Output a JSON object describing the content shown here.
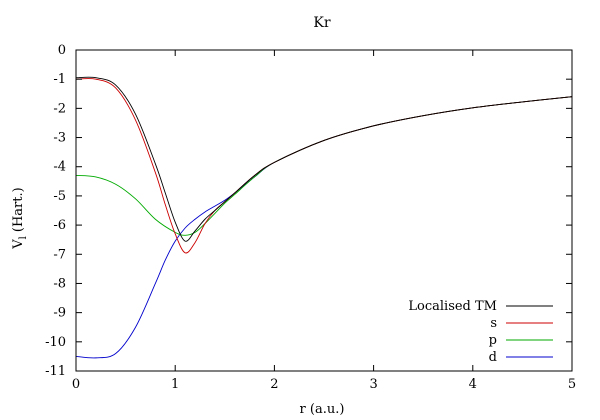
{
  "chart_data": {
    "type": "line",
    "title": "Kr",
    "xlabel": "r (a.u.)",
    "ylabel_main": "V",
    "ylabel_sub": "l",
    "ylabel_unit": "(Hart.)",
    "xlim": [
      0,
      5
    ],
    "ylim": [
      -11,
      0
    ],
    "xticks": [
      0,
      1,
      2,
      3,
      4,
      5
    ],
    "yticks": [
      0,
      -1,
      -2,
      -3,
      -4,
      -5,
      -6,
      -7,
      -8,
      -9,
      -10,
      -11
    ],
    "grid": false,
    "legend_position": "bottom-right",
    "series": [
      {
        "name": "Localised TM",
        "color": "#000000",
        "points": [
          [
            0,
            -0.95
          ],
          [
            0.2,
            -0.95
          ],
          [
            0.4,
            -1.2
          ],
          [
            0.6,
            -2.2
          ],
          [
            0.8,
            -3.9
          ],
          [
            0.9,
            -4.9
          ],
          [
            1.0,
            -5.9
          ],
          [
            1.1,
            -6.55
          ],
          [
            1.2,
            -6.2
          ],
          [
            1.3,
            -5.8
          ],
          [
            1.4,
            -5.5
          ],
          [
            1.5,
            -5.2
          ],
          [
            1.6,
            -4.9
          ],
          [
            1.8,
            -4.3
          ],
          [
            2.0,
            -3.85
          ],
          [
            2.5,
            -3.1
          ],
          [
            3.0,
            -2.6
          ],
          [
            3.5,
            -2.25
          ],
          [
            4.0,
            -1.98
          ],
          [
            4.5,
            -1.78
          ],
          [
            5.0,
            -1.6
          ]
        ]
      },
      {
        "name": "s",
        "color": "#cc0000",
        "points": [
          [
            0,
            -1.0
          ],
          [
            0.2,
            -1.0
          ],
          [
            0.4,
            -1.3
          ],
          [
            0.6,
            -2.4
          ],
          [
            0.8,
            -4.2
          ],
          [
            0.9,
            -5.3
          ],
          [
            1.0,
            -6.3
          ],
          [
            1.1,
            -6.95
          ],
          [
            1.2,
            -6.6
          ],
          [
            1.3,
            -5.95
          ],
          [
            1.4,
            -5.5
          ],
          [
            1.5,
            -5.2
          ],
          [
            1.6,
            -4.9
          ],
          [
            1.8,
            -4.3
          ],
          [
            2.0,
            -3.85
          ],
          [
            2.5,
            -3.1
          ],
          [
            3.0,
            -2.6
          ],
          [
            3.5,
            -2.25
          ],
          [
            4.0,
            -1.98
          ],
          [
            4.5,
            -1.78
          ],
          [
            5.0,
            -1.6
          ]
        ]
      },
      {
        "name": "p",
        "color": "#00aa00",
        "points": [
          [
            0,
            -4.3
          ],
          [
            0.2,
            -4.35
          ],
          [
            0.4,
            -4.6
          ],
          [
            0.6,
            -5.1
          ],
          [
            0.8,
            -5.8
          ],
          [
            1.0,
            -6.25
          ],
          [
            1.1,
            -6.35
          ],
          [
            1.2,
            -6.25
          ],
          [
            1.3,
            -5.95
          ],
          [
            1.4,
            -5.6
          ],
          [
            1.5,
            -5.25
          ],
          [
            1.6,
            -4.95
          ],
          [
            1.8,
            -4.35
          ],
          [
            2.0,
            -3.85
          ],
          [
            2.5,
            -3.1
          ],
          [
            3.0,
            -2.6
          ],
          [
            3.5,
            -2.25
          ],
          [
            4.0,
            -1.98
          ],
          [
            4.5,
            -1.78
          ],
          [
            5.0,
            -1.6
          ]
        ]
      },
      {
        "name": "d",
        "color": "#0000cc",
        "points": [
          [
            0,
            -10.5
          ],
          [
            0.2,
            -10.55
          ],
          [
            0.4,
            -10.4
          ],
          [
            0.6,
            -9.5
          ],
          [
            0.8,
            -8.0
          ],
          [
            0.9,
            -7.2
          ],
          [
            1.0,
            -6.55
          ],
          [
            1.1,
            -6.1
          ],
          [
            1.2,
            -5.8
          ],
          [
            1.3,
            -5.55
          ],
          [
            1.4,
            -5.35
          ],
          [
            1.5,
            -5.15
          ],
          [
            1.6,
            -4.9
          ],
          [
            1.8,
            -4.35
          ],
          [
            2.0,
            -3.85
          ],
          [
            2.5,
            -3.1
          ],
          [
            3.0,
            -2.6
          ],
          [
            3.5,
            -2.25
          ],
          [
            4.0,
            -1.98
          ],
          [
            4.5,
            -1.78
          ],
          [
            5.0,
            -1.6
          ]
        ]
      }
    ]
  }
}
